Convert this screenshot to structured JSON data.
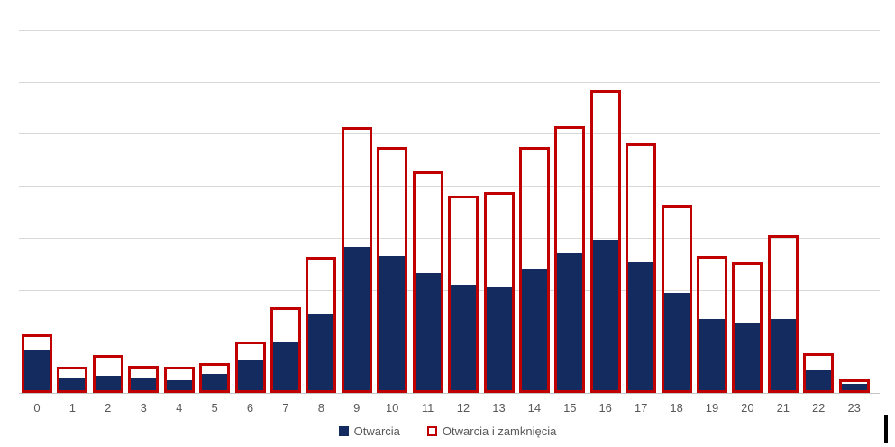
{
  "chart_data": {
    "type": "bar",
    "title": "",
    "xlabel": "",
    "ylabel": "",
    "value_axis": {
      "tick_labels_visible": false,
      "gridline_interval_count": 7,
      "grid": "on",
      "note": "y-axis has no tick labels in source; values are percent of plot height",
      "ylim_pct": [
        0,
        100
      ]
    },
    "legend_position": "bottom-center",
    "categories": [
      "0",
      "1",
      "2",
      "3",
      "4",
      "5",
      "6",
      "7",
      "8",
      "9",
      "10",
      "11",
      "12",
      "13",
      "14",
      "15",
      "16",
      "17",
      "18",
      "19",
      "20",
      "21",
      "22",
      "23"
    ],
    "series": [
      {
        "name": "Otwarcia",
        "style": "filled",
        "color": "#132b5e",
        "values_pct": [
          12.0,
          4.3,
          4.8,
          4.1,
          3.6,
          5.1,
          9.0,
          14.2,
          21.7,
          40.0,
          37.7,
          33.0,
          29.8,
          29.3,
          34.0,
          38.5,
          42.0,
          36.0,
          27.6,
          20.2,
          19.2,
          20.4,
          6.1,
          2.6
        ]
      },
      {
        "name": "Otwarcia i zamknięcia",
        "style": "outlined",
        "color": "#c00000",
        "values_pct": [
          16.2,
          7.3,
          10.5,
          7.5,
          7.1,
          8.3,
          14.2,
          23.6,
          37.3,
          73.1,
          67.5,
          60.8,
          54.3,
          55.3,
          67.5,
          73.4,
          83.3,
          68.7,
          51.4,
          37.7,
          36.0,
          43.4,
          10.8,
          3.8
        ]
      }
    ]
  },
  "legend": {
    "items": [
      {
        "label": "Otwarcia",
        "swatch": "filled-navy-square"
      },
      {
        "label": "Otwarcia i zamknięcia",
        "swatch": "red-outlined-square"
      }
    ]
  },
  "colors": {
    "bar_fill": "#132b5e",
    "bar_outline": "#c00000",
    "gridline": "#d9d9d9",
    "axis_line": "#c6c6c6",
    "tick_label_text": "#595959",
    "background": "#ffffff",
    "caret": "#000000"
  }
}
